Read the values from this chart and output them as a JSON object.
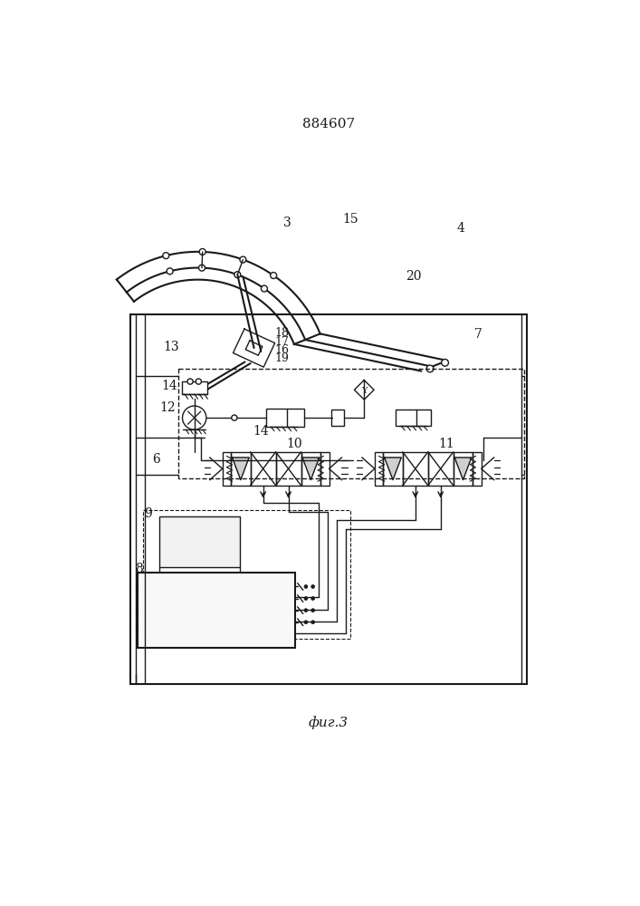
{
  "title": "884607",
  "caption": "фиг.3",
  "bg_color": "#ffffff",
  "line_color": "#1a1a1a",
  "title_fontsize": 11,
  "caption_fontsize": 11,
  "fig_width": 7.07,
  "fig_height": 10.0
}
